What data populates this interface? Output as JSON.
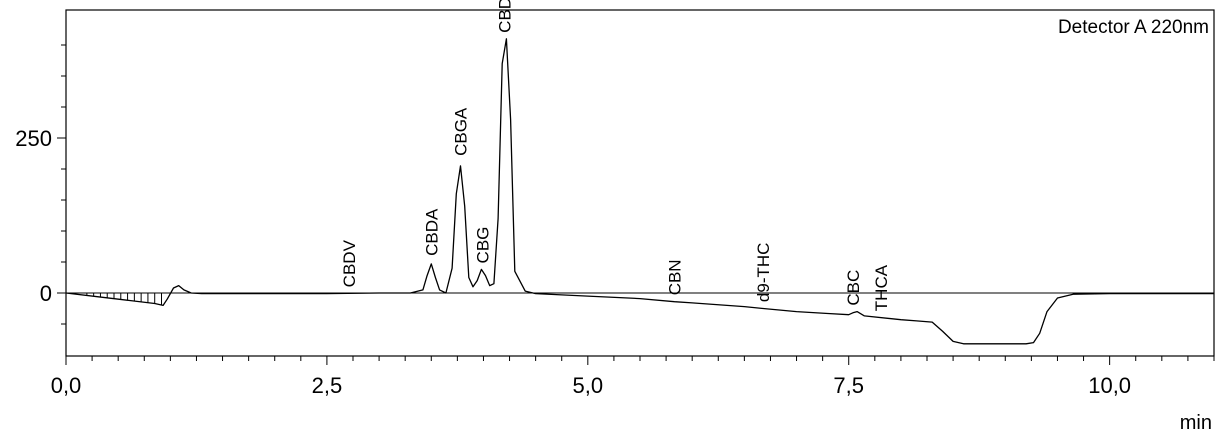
{
  "chart_data": {
    "type": "line",
    "title": "",
    "detector_label": "Detector A 220nm",
    "xlabel": "min",
    "ylabel": "",
    "xlim": [
      0.0,
      11.0
    ],
    "ylim": [
      -95,
      450
    ],
    "x_ticks": [
      {
        "value": 0.0,
        "label": "0,0"
      },
      {
        "value": 2.5,
        "label": "2,5"
      },
      {
        "value": 5.0,
        "label": "5,0"
      },
      {
        "value": 7.5,
        "label": "7,5"
      },
      {
        "value": 10.0,
        "label": "10,0"
      }
    ],
    "y_ticks": [
      {
        "value": 0,
        "label": "0"
      },
      {
        "value": 250,
        "label": "250"
      }
    ],
    "grid": false,
    "baseline": 0,
    "series": [
      {
        "x": [
          0.0,
          0.3,
          0.6,
          0.85,
          0.93,
          0.97,
          1.03,
          1.08,
          1.13,
          1.2,
          1.3,
          1.5,
          2.0,
          2.5,
          3.0,
          3.3,
          3.42,
          3.46,
          3.5,
          3.54,
          3.58,
          3.64,
          3.7,
          3.74,
          3.78,
          3.82,
          3.86,
          3.9,
          3.94,
          3.98,
          4.02,
          4.06,
          4.1,
          4.14,
          4.18,
          4.22,
          4.26,
          4.3,
          4.4,
          4.5,
          5.0,
          5.5,
          5.83,
          6.0,
          6.5,
          6.68,
          7.0,
          7.3,
          7.5,
          7.54,
          7.58,
          7.65,
          8.0,
          8.15,
          8.3,
          8.4,
          8.5,
          8.6,
          8.75,
          9.0,
          9.2,
          9.27,
          9.33,
          9.4,
          9.5,
          9.65,
          10.0,
          10.5,
          11.0
        ],
        "y": [
          0,
          -6,
          -12,
          -17,
          -20,
          -10,
          8,
          12,
          5,
          0,
          -1,
          -1,
          -1,
          -1,
          0,
          0,
          5,
          28,
          47,
          25,
          5,
          0,
          40,
          160,
          205,
          140,
          25,
          10,
          20,
          38,
          28,
          12,
          15,
          120,
          370,
          410,
          280,
          35,
          3,
          -1,
          -5,
          -9,
          -14,
          -16,
          -22,
          -25,
          -30,
          -33,
          -35,
          -32,
          -30,
          -37,
          -43,
          -45,
          -47,
          -62,
          -78,
          -82,
          -82,
          -82,
          -82,
          -80,
          -65,
          -30,
          -8,
          -2,
          -1,
          -1,
          -1
        ]
      }
    ],
    "peaks": [
      {
        "name": "CBDV",
        "rt": 2.71
      },
      {
        "name": "CBDA",
        "rt": 3.5
      },
      {
        "name": "CBGA",
        "rt": 3.78
      },
      {
        "name": "CBG",
        "rt": 3.99
      },
      {
        "name": "CBD",
        "rt": 4.2
      },
      {
        "name": "CBN",
        "rt": 5.83
      },
      {
        "name": "d9-THC",
        "rt": 6.68
      },
      {
        "name": "CBC",
        "rt": 7.54
      },
      {
        "name": "THCA",
        "rt": 7.81
      }
    ]
  }
}
